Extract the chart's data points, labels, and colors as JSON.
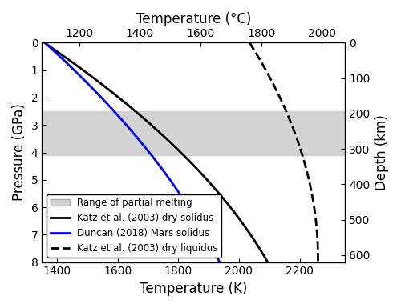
{
  "title_top": "Temperature (°C)",
  "xlabel_bottom": "Temperature (K)",
  "ylabel_left": "Pressure (GPa)",
  "ylabel_right": "Depth (km)",
  "pressure_min": 0,
  "pressure_max": 8,
  "temp_K_min": 1350,
  "temp_K_max": 2350,
  "depth_min": 0,
  "depth_max": 620,
  "shaded_P_min": 2.5,
  "shaded_P_max": 4.1,
  "shading_color": "#d3d3d3",
  "solidus_katz_color": "#000000",
  "solidus_duncan_color": "#0000ff",
  "liquidus_katz_color": "#000000",
  "legend_loc": "lower left",
  "axis_label_size": 12,
  "figsize": [
    5.0,
    3.85
  ],
  "dpi": 100,
  "bottom_xticks": [
    1400,
    1600,
    1800,
    2000,
    2200
  ],
  "top_xticks": [
    1200,
    1400,
    1600,
    1800,
    2000
  ],
  "yticks": [
    0,
    1,
    2,
    3,
    4,
    5,
    6,
    7,
    8
  ],
  "right_yticks": [
    0,
    100,
    200,
    300,
    400,
    500,
    600
  ],
  "K_to_C": 273.15,
  "km_per_GPa": 77.5
}
